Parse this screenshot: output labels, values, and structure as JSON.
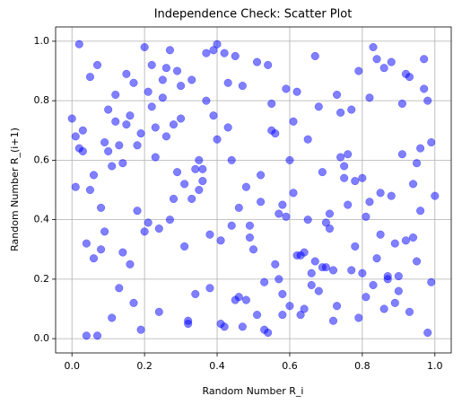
{
  "chart_data": {
    "type": "scatter",
    "title": "Independence Check: Scatter Plot",
    "x_label": "Random Number R_i",
    "y_label": "Random Number R_(i+1)",
    "color": "#0000ff",
    "alpha": 0.5,
    "grid": true,
    "xlim": [
      -0.045,
      1.045
    ],
    "ylim": [
      -0.048,
      1.048
    ],
    "xticks": [
      {
        "value": 0,
        "label": "0.0"
      },
      0.2,
      0.4,
      0.6,
      0.8,
      {
        "value": 1,
        "label": "1.0"
      }
    ],
    "yticks": [
      {
        "value": 0,
        "label": "0.0"
      },
      0.2,
      0.4,
      0.6,
      0.8,
      {
        "value": 1,
        "label": "1.0"
      }
    ],
    "x": [
      0.12,
      0.87,
      0.45,
      0.63,
      0.29,
      0.94,
      0.05,
      0.71,
      0.38,
      0.56,
      0.19,
      0.82,
      0.33,
      0.67,
      0.91,
      0.02,
      0.48,
      0.75,
      0.24,
      0.59,
      0.14,
      0.99,
      0.41,
      0.86,
      0.08,
      0.53,
      0.77,
      0.31,
      0.64,
      0.17,
      0.92,
      0.44,
      0.69,
      0.27,
      0.81,
      0.03,
      0.58,
      0.36,
      0.73,
      0.11,
      0.96,
      0.49,
      0.22,
      0.84,
      0.61,
      0.07,
      0.39,
      0.78,
      0.15,
      0.52,
      0.89,
      0.26,
      0.66,
      0.34,
      0.97,
      0.09,
      0.55,
      0.42,
      0.74,
      0.18,
      0.83,
      0.47,
      0.01,
      0.62,
      0.28,
      0.93,
      0.37,
      0.7,
      0.13,
      0.57,
      0.8,
      0.21,
      0.46,
      0.88,
      0.04,
      0.68,
      0.32,
      0.95,
      0.51,
      0.16,
      0.76,
      0.43,
      0.6,
      0.25,
      0.85,
      0.1,
      0.54,
      0.98,
      0.35,
      0.72,
      0.2,
      0.65,
      0.4,
      0.9,
      0.06,
      0.5,
      0.79,
      0.3,
      0.58,
      0.23,
      0.44,
      0.07,
      0.81,
      0.36,
      0.62,
      0.95,
      0.19,
      0.53,
      0.28,
      0.74,
      0.9,
      0.11,
      0.67,
      0.41,
      0.02,
      0.86,
      0.33,
      0.57,
      0.15,
      0.99,
      0.48,
      0.72,
      0.25,
      0.64,
      0.09,
      0.83,
      0.38,
      0.6,
      0.17,
      0.92,
      0.46,
      0.7,
      0.22,
      0.78,
      0.04,
      0.55,
      0.31,
      0.88,
      0.13,
      0.69,
      0.97,
      0.27,
      0.51,
      0.76,
      0.06,
      0.42,
      0.85,
      0.34,
      0.61,
      0.2,
      0.93,
      0.47,
      0.14,
      0.8,
      0.37,
      0.58,
      0.01,
      0.73,
      0.26,
      0.89,
      0.52,
      0.1,
      0.66,
      0.4,
      0.96,
      0.18,
      0.79,
      0.3,
      0.63,
      0.05,
      0.84,
      0.45,
      0.23,
      0.71,
      0.35,
      0.98,
      0.12,
      0.56,
      0.82,
      0.29,
      0.68,
      0.03,
      0.49,
      0.91,
      0.24,
      0.75,
      0.39,
      0.59,
      0.16,
      0.87,
      0.43,
      0.08,
      0.65,
      0.32,
      0.94,
      0.21,
      0.54,
      0.77,
      0.0,
      1.0
    ],
    "values": [
      0.73,
      0.21,
      0.95,
      0.08,
      0.56,
      0.34,
      0.88,
      0.42,
      0.17,
      0.69,
      0.03,
      0.81,
      0.47,
      0.26,
      0.62,
      0.99,
      0.13,
      0.58,
      0.37,
      0.84,
      0.29,
      0.66,
      0.05,
      0.91,
      0.44,
      0.19,
      0.77,
      0.52,
      0.1,
      0.86,
      0.33,
      0.6,
      0.24,
      0.97,
      0.41,
      0.7,
      0.15,
      0.53,
      0.82,
      0.07,
      0.64,
      0.38,
      0.92,
      0.27,
      0.49,
      0.01,
      0.75,
      0.31,
      0.89,
      0.46,
      0.12,
      0.68,
      0.22,
      0.57,
      0.94,
      0.36,
      0.79,
      0.04,
      0.61,
      0.43,
      0.18,
      0.85,
      0.51,
      0.28,
      0.72,
      0.09,
      0.96,
      0.39,
      0.65,
      0.2,
      0.54,
      0.83,
      0.14,
      0.48,
      0.32,
      0.78,
      0.06,
      0.59,
      0.93,
      0.25,
      0.45,
      0.71,
      0.11,
      0.87,
      0.35,
      0.63,
      0.02,
      0.8,
      0.5,
      0.23,
      0.98,
      0.4,
      0.67,
      0.16,
      0.55,
      0.3,
      0.9,
      0.74,
      0.08,
      0.61,
      0.38,
      0.92,
      0.14,
      0.57,
      0.83,
      0.26,
      0.69,
      0.03,
      0.47,
      0.76,
      0.21,
      0.58,
      0.95,
      0.33,
      0.64,
      0.1,
      0.87,
      0.42,
      0.72,
      0.19,
      0.51,
      0.06,
      0.81,
      0.29,
      0.66,
      0.98,
      0.35,
      0.6,
      0.12,
      0.89,
      0.44,
      0.24,
      0.78,
      0.53,
      0.01,
      0.7,
      0.31,
      0.93,
      0.17,
      0.56,
      0.84,
      0.4,
      0.08,
      0.62,
      0.27,
      0.96,
      0.49,
      0.15,
      0.73,
      0.36,
      0.88,
      0.04,
      0.59,
      0.22,
      0.8,
      0.45,
      0.68,
      0.11,
      0.91,
      0.32,
      0.55,
      0.77,
      0.18,
      0.99,
      0.43,
      0.65,
      0.07,
      0.85,
      0.28,
      0.5,
      0.94,
      0.13,
      0.71,
      0.37,
      0.6,
      0.02,
      0.82,
      0.25,
      0.46,
      0.9,
      0.16,
      0.63,
      0.34,
      0.79,
      0.09,
      0.54,
      0.97,
      0.41,
      0.75,
      0.2,
      0.86,
      0.3,
      0.67,
      0.05,
      0.52,
      0.39,
      0.92,
      0.23,
      0.74,
      0.48
    ]
  }
}
